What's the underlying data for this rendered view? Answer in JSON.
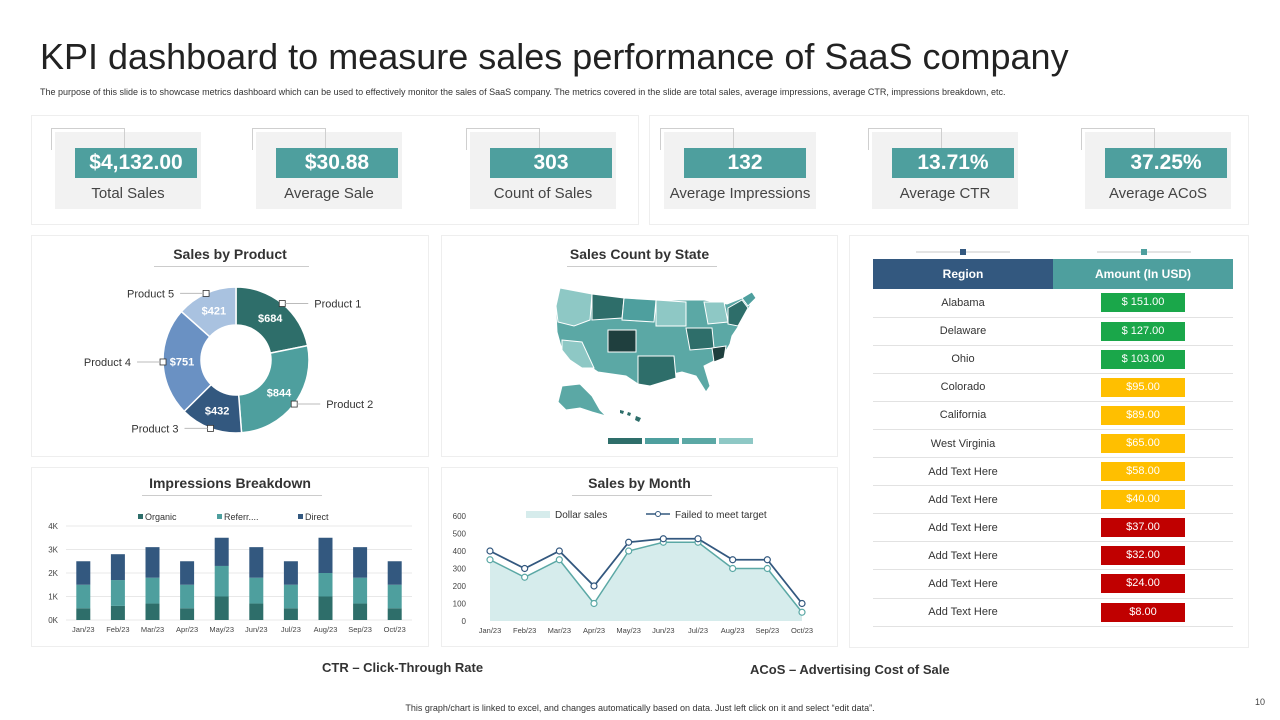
{
  "header": {
    "title": "KPI dashboard to measure sales performance of SaaS company",
    "subtitle": "The purpose of this slide is to showcase metrics dashboard which can be used to effectively monitor the sales of SaaS company. The metrics covered in the slide are total sales, average impressions, average CTR,  impressions breakdown, etc."
  },
  "kpis": [
    {
      "value": "$4,132.00",
      "label": "Total Sales"
    },
    {
      "value": "$30.88",
      "label": "Average Sale"
    },
    {
      "value": "303",
      "label": "Count of Sales"
    },
    {
      "value": "132",
      "label": "Average Impressions"
    },
    {
      "value": "13.71%",
      "label": "Average CTR"
    },
    {
      "value": "37.25%",
      "label": "Average ACoS"
    }
  ],
  "panels": {
    "sales_by_product": "Sales by Product",
    "sales_count_by_state": "Sales Count by State",
    "impressions_breakdown": "Impressions Breakdown",
    "sales_by_month": "Sales by Month"
  },
  "colors": {
    "dark_teal": "#2e6e6a",
    "teal": "#4e9f9e",
    "light_teal": "#8ec8c5",
    "navy": "#33587f",
    "mid_blue": "#6a91c3",
    "light_blue": "#a9c2e0",
    "green": "#1aa74a",
    "amber": "#ffbf00",
    "red": "#c00000"
  },
  "chart_data": [
    {
      "type": "pie",
      "title": "Sales by Product",
      "labels": [
        "Product 1",
        "Product 2",
        "Product 3",
        "Product 4",
        "Product 5"
      ],
      "values": [
        684,
        844,
        432,
        751,
        421
      ],
      "data_labels": [
        "$684",
        "$844",
        "$432",
        "$751",
        "$421"
      ]
    },
    {
      "type": "bar",
      "stacked": true,
      "title": "Impressions Breakdown",
      "categories": [
        "Jan/23",
        "Feb/23",
        "Mar/23",
        "Apr/23",
        "May/23",
        "Jun/23",
        "Jul/23",
        "Aug/23",
        "Sep/23",
        "Oct/23"
      ],
      "series": [
        {
          "name": "Organic",
          "values": [
            500,
            600,
            700,
            500,
            1000,
            700,
            500,
            1000,
            700,
            500
          ]
        },
        {
          "name": "Referr....",
          "values": [
            1000,
            1100,
            1100,
            1000,
            1300,
            1100,
            1000,
            1000,
            1100,
            1000
          ]
        },
        {
          "name": "Direct",
          "values": [
            1000,
            1100,
            1300,
            1000,
            1200,
            1300,
            1000,
            1500,
            1300,
            1000
          ]
        }
      ],
      "ylim": [
        0,
        4000
      ],
      "yticks": [
        "0K",
        "1K",
        "2K",
        "3K",
        "4K"
      ],
      "legend": "top"
    },
    {
      "type": "line",
      "title": "Sales by Month",
      "categories": [
        "Jan/23",
        "Feb/23",
        "Mar/23",
        "Apr/23",
        "May/23",
        "Jun/23",
        "Jul/23",
        "Aug/23",
        "Sep/23",
        "Oct/23"
      ],
      "series": [
        {
          "name": "Dollar sales",
          "kind": "area",
          "values": [
            350,
            250,
            350,
            100,
            400,
            450,
            450,
            300,
            300,
            50
          ]
        },
        {
          "name": "Failed to meet target",
          "kind": "line",
          "values": [
            400,
            300,
            400,
            200,
            450,
            470,
            470,
            350,
            350,
            100
          ]
        }
      ],
      "ylim": [
        0,
        600
      ],
      "yticks": [
        "0",
        "100",
        "200",
        "300",
        "400",
        "500",
        "600"
      ],
      "legend": "top"
    },
    {
      "type": "table",
      "columns": [
        "Region",
        "Amount (In USD)"
      ],
      "rows": [
        {
          "region": "Alabama",
          "amount": "$ 151.00",
          "status": "green"
        },
        {
          "region": "Delaware",
          "amount": "$ 127.00",
          "status": "green"
        },
        {
          "region": "Ohio",
          "amount": "$ 103.00",
          "status": "green"
        },
        {
          "region": "Colorado",
          "amount": "$95.00",
          "status": "amber"
        },
        {
          "region": "California",
          "amount": "$89.00",
          "status": "amber"
        },
        {
          "region": "West Virginia",
          "amount": "$65.00",
          "status": "amber"
        },
        {
          "region": "Add Text Here",
          "amount": "$58.00",
          "status": "amber"
        },
        {
          "region": "Add Text Here",
          "amount": "$40.00",
          "status": "amber"
        },
        {
          "region": "Add Text Here",
          "amount": "$37.00",
          "status": "red"
        },
        {
          "region": "Add Text Here",
          "amount": "$32.00",
          "status": "red"
        },
        {
          "region": "Add Text Here",
          "amount": "$24.00",
          "status": "red"
        },
        {
          "region": "Add Text Here",
          "amount": "$8.00",
          "status": "red"
        }
      ]
    }
  ],
  "abbreviations": {
    "ctr": "CTR – Click-Through Rate",
    "acos": "ACoS – Advertising Cost of Sale"
  },
  "footer": "This graph/chart is linked to excel, and changes automatically based on data. Just left click on it and select “edit data”.",
  "page_number": "10"
}
